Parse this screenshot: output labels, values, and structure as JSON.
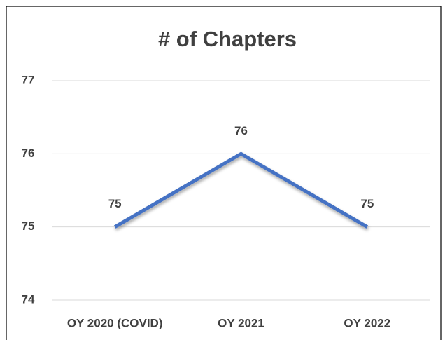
{
  "chart_data": {
    "type": "line",
    "title": "# of Chapters",
    "categories": [
      "OY 2020 (COVID)",
      "OY 2021",
      "OY 2022"
    ],
    "series": [
      {
        "name": "# of Chapters",
        "color": "#4472c4",
        "values": [
          75,
          76,
          75
        ]
      }
    ],
    "ylim": [
      74,
      77
    ],
    "yticks": [
      74,
      75,
      76,
      77
    ],
    "grid": true,
    "legend": false
  }
}
